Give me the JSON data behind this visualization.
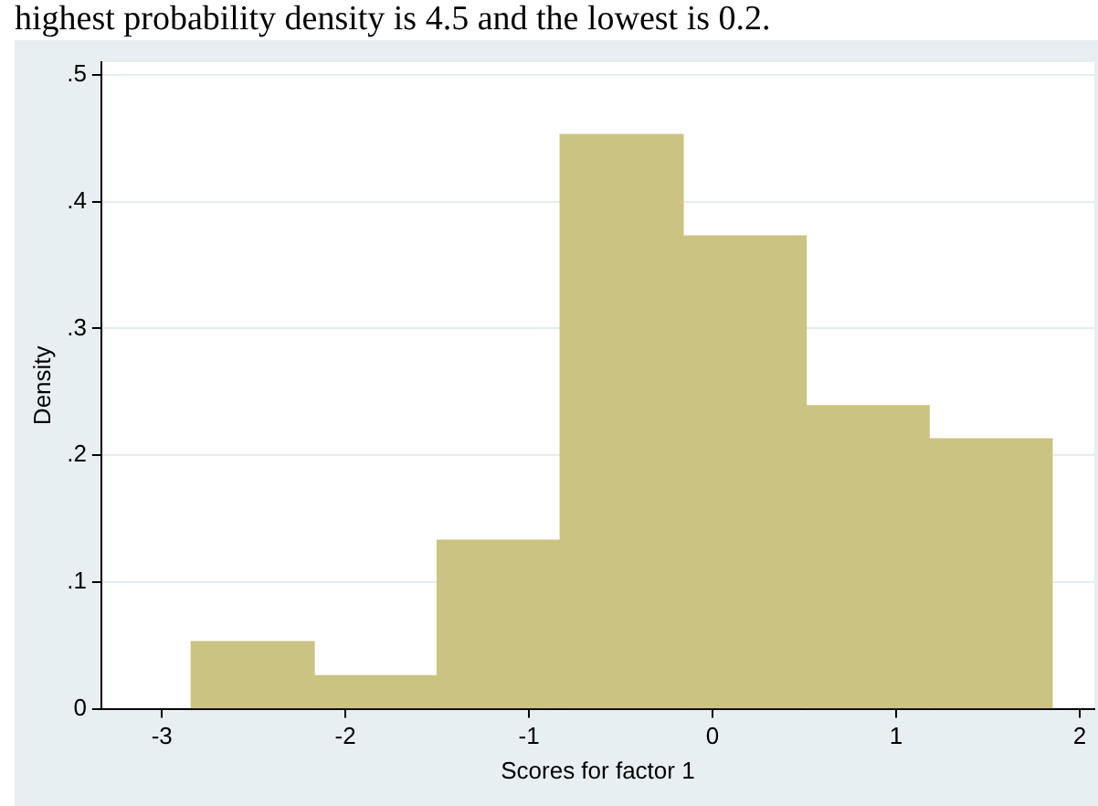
{
  "chart_data": {
    "type": "histogram",
    "annotations": [
      "highest probability density is 4.5 and the lowest is 0.2."
    ],
    "xlabel": "Scores for factor 1",
    "ylabel": "Density",
    "bins": [
      -2.84,
      -2.17,
      -1.5,
      -0.83,
      -0.16,
      0.51,
      1.18,
      1.85
    ],
    "values": [
      0.053,
      0.026,
      0.133,
      0.453,
      0.373,
      0.239,
      0.213
    ],
    "color": "#cbc382",
    "xlim": [
      -3.33,
      2.08
    ],
    "xticks": [
      -3,
      -2,
      -1,
      0,
      1,
      2
    ],
    "ylim": [
      0,
      0.51
    ],
    "yticks": [
      {
        "value": 0,
        "label": "0"
      },
      {
        "value": 0.1,
        "label": ".1"
      },
      {
        "value": 0.2,
        "label": ".2"
      },
      {
        "value": 0.3,
        "label": ".3"
      },
      {
        "value": 0.4,
        "label": ".4"
      },
      {
        "value": 0.5,
        "label": ".5"
      }
    ],
    "grid": "y"
  }
}
